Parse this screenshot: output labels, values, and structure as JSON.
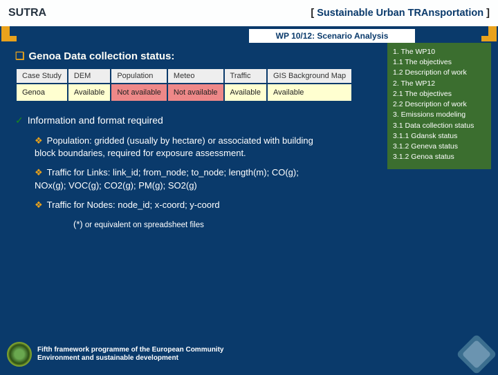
{
  "header": {
    "left": "SUTRA",
    "right_bracket_l": "[ ",
    "right_main": "Sustainable Urban TRAnsportation",
    "right_bracket_r": " ]"
  },
  "sub": "WP 10/12: Scenario Analysis",
  "title": "Genoa Data collection status:",
  "table": {
    "headers": [
      "Case Study",
      "DEM",
      "Population",
      "Meteo",
      "Traffic",
      "GIS Background Map"
    ],
    "row": [
      "Genoa",
      "Available",
      "Not available",
      "Not available",
      "Available",
      "Available"
    ],
    "na_cols": [
      2,
      3
    ]
  },
  "check": "Information and format required",
  "diamonds": [
    "Population: gridded (usually by hectare) or associated with building block boundaries, required for exposure assessment.",
    "Traffic for Links: link_id; from_node; to_node; length(m); CO(g); NOx(g); VOC(g); CO2(g); PM(g); SO2(g)",
    "Traffic for Nodes: node_id; x-coord; y-coord"
  ],
  "star_note_prefix": "(*)",
  "star_note": " or equivalent on spreadsheet files",
  "footer": {
    "line1": "Fifth framework programme of the European Community",
    "line2": "Environment and sustainable development"
  },
  "toc": [
    "1. The WP10",
    "1.1 The objectives",
    "1.2 Description of work",
    "2. The WP12",
    "2.1 The objectives",
    "2.2 Description of work",
    "3. Emissions modeling",
    "3.1 Data collection status",
    "3.1.1 Gdansk status",
    "3.1.2 Geneva status",
    "3.1.2 Genoa status"
  ]
}
